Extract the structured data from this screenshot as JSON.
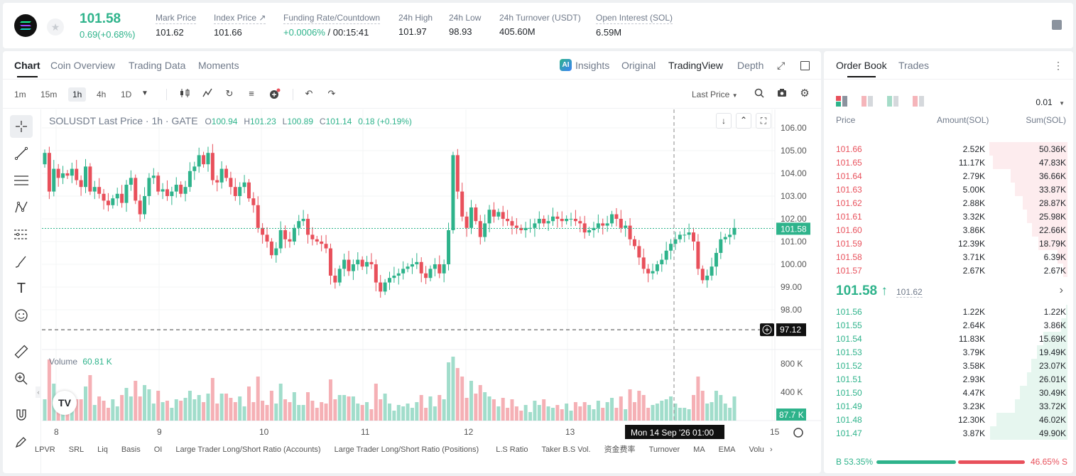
{
  "header": {
    "price": "101.58",
    "change": "0.69(+0.68%)",
    "stats": [
      {
        "label": "Mark Price",
        "value": "101.62"
      },
      {
        "label": "Index Price ↗",
        "value": "101.66"
      },
      {
        "label": "Funding Rate/Countdown",
        "value_green": "+0.0006%",
        "value_rest": " / 00:15:41"
      },
      {
        "label": "24h High",
        "value": "101.97"
      },
      {
        "label": "24h Low",
        "value": "98.93"
      },
      {
        "label": "24h Turnover (USDT)",
        "value": "405.60M"
      },
      {
        "label": "Open Interest (SOL)",
        "value": "6.59M"
      }
    ]
  },
  "chart_tabs": [
    "Chart",
    "Coin Overview",
    "Trading Data",
    "Moments"
  ],
  "chart_views": [
    "Insights",
    "Original",
    "TradingView",
    "Depth"
  ],
  "timeframes": [
    "1m",
    "15m",
    "1h",
    "4h",
    "1D"
  ],
  "last_price_select": "Last Price",
  "legend": {
    "symbol": "SOLUSDT Last Price · 1h · GATE",
    "o_label": "O",
    "o": "100.94",
    "h_label": "H",
    "h": "101.23",
    "l_label": "L",
    "l": "100.89",
    "c_label": "C",
    "c": "101.14",
    "chg": "0.18 (+0.19%)"
  },
  "volume": {
    "label": "Volume",
    "value": "60.81 K",
    "ticks": [
      "800 K",
      "400 K"
    ],
    "current": "87.7 K"
  },
  "price_axis": [
    "106.00",
    "105.00",
    "104.00",
    "103.00",
    "102.00",
    "101.00",
    "100.00",
    "99.00",
    "98.00"
  ],
  "current_price_badge": "101.58",
  "crosshair_price_badge": "97.12",
  "time_axis": [
    "8",
    "9",
    "10",
    "11",
    "12",
    "13",
    "15"
  ],
  "crosshair_time": "Mon 14 Sep '26   01:00",
  "indicator_tabs": [
    "LPVR",
    "SRL",
    "Liq",
    "Basis",
    "OI",
    "Large Trader Long/Short Ratio (Accounts)",
    "Large Trader Long/Short Ratio (Positions)",
    "L.S Ratio",
    "Taker B.S Vol.",
    "资金费率",
    "Turnover",
    "MA",
    "EMA",
    "Volu"
  ],
  "order_book": {
    "tabs": [
      "Order Book",
      "Trades"
    ],
    "precision": "0.01",
    "headers": [
      "Price",
      "Amount(SOL)",
      "Sum(SOL)"
    ],
    "asks": [
      {
        "price": "101.66",
        "amount": "2.52K",
        "sum": "50.36K",
        "depth": 1.0
      },
      {
        "price": "101.65",
        "amount": "11.17K",
        "sum": "47.83K",
        "depth": 0.95
      },
      {
        "price": "101.64",
        "amount": "2.79K",
        "sum": "36.66K",
        "depth": 0.73
      },
      {
        "price": "101.63",
        "amount": "5.00K",
        "sum": "33.87K",
        "depth": 0.67
      },
      {
        "price": "101.62",
        "amount": "2.88K",
        "sum": "28.87K",
        "depth": 0.57
      },
      {
        "price": "101.61",
        "amount": "3.32K",
        "sum": "25.98K",
        "depth": 0.52
      },
      {
        "price": "101.60",
        "amount": "3.86K",
        "sum": "22.66K",
        "depth": 0.45
      },
      {
        "price": "101.59",
        "amount": "12.39K",
        "sum": "18.79K",
        "depth": 0.37
      },
      {
        "price": "101.58",
        "amount": "3.71K",
        "sum": "6.39K",
        "depth": 0.13
      },
      {
        "price": "101.57",
        "amount": "2.67K",
        "sum": "2.67K",
        "depth": 0.05
      }
    ],
    "mid_price": "101.58 ↑",
    "mid_ref": "101.62",
    "bids": [
      {
        "price": "101.56",
        "amount": "1.22K",
        "sum": "1.22K",
        "depth": 0.02
      },
      {
        "price": "101.55",
        "amount": "2.64K",
        "sum": "3.86K",
        "depth": 0.08
      },
      {
        "price": "101.54",
        "amount": "11.83K",
        "sum": "15.69K",
        "depth": 0.31
      },
      {
        "price": "101.53",
        "amount": "3.79K",
        "sum": "19.49K",
        "depth": 0.39
      },
      {
        "price": "101.52",
        "amount": "3.58K",
        "sum": "23.07K",
        "depth": 0.46
      },
      {
        "price": "101.51",
        "amount": "2.93K",
        "sum": "26.01K",
        "depth": 0.52
      },
      {
        "price": "101.50",
        "amount": "4.47K",
        "sum": "30.49K",
        "depth": 0.61
      },
      {
        "price": "101.49",
        "amount": "3.23K",
        "sum": "33.72K",
        "depth": 0.67
      },
      {
        "price": "101.48",
        "amount": "12.30K",
        "sum": "46.02K",
        "depth": 0.91
      },
      {
        "price": "101.47",
        "amount": "3.87K",
        "sum": "49.90K",
        "depth": 0.99
      }
    ],
    "buy_ratio": "B 53.35%",
    "sell_ratio": "46.65% S",
    "buy_share": 0.5335
  },
  "colors": {
    "up": "#2eb38b",
    "down": "#e8505b"
  }
}
